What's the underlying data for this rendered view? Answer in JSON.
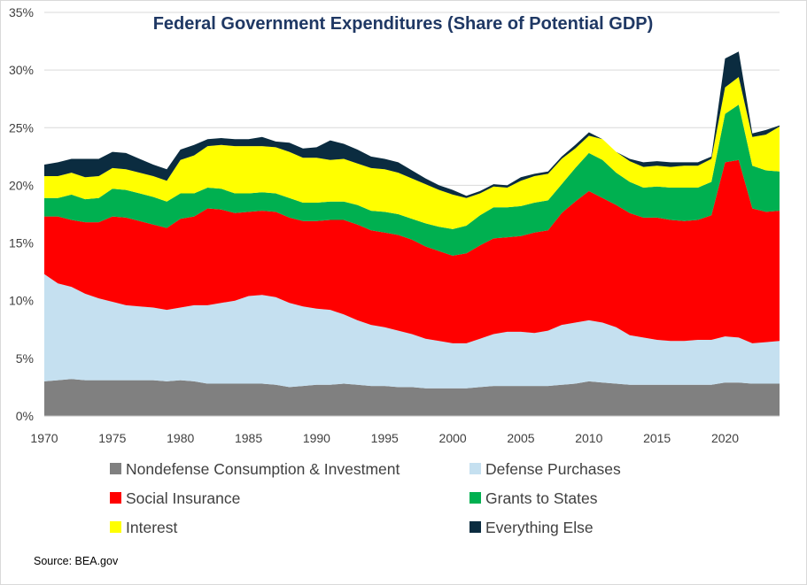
{
  "chart_data": {
    "type": "area",
    "stacked": true,
    "title": "Federal Government Expenditures (Share of Potential GDP)",
    "source": "Source: BEA.gov",
    "xlabel": "",
    "ylabel": "",
    "xlim": [
      1970,
      2024
    ],
    "ylim": [
      0,
      35
    ],
    "y_ticks": [
      "0%",
      "5%",
      "10%",
      "15%",
      "20%",
      "25%",
      "30%",
      "35%"
    ],
    "x_ticks": [
      "1970",
      "1975",
      "1980",
      "1985",
      "1990",
      "1995",
      "2000",
      "2005",
      "2010",
      "2015",
      "2020"
    ],
    "grid": true,
    "legend_position": "bottom",
    "x": [
      1970,
      1971,
      1972,
      1973,
      1974,
      1975,
      1976,
      1977,
      1978,
      1979,
      1980,
      1981,
      1982,
      1983,
      1984,
      1985,
      1986,
      1987,
      1988,
      1989,
      1990,
      1991,
      1992,
      1993,
      1994,
      1995,
      1996,
      1997,
      1998,
      1999,
      2000,
      2001,
      2002,
      2003,
      2004,
      2005,
      2006,
      2007,
      2008,
      2009,
      2010,
      2011,
      2012,
      2013,
      2014,
      2015,
      2016,
      2017,
      2018,
      2019,
      2020,
      2021,
      2022,
      2023,
      2024
    ],
    "series": [
      {
        "name": "Nondefense Consumption & Investment",
        "color": "#808080",
        "values": [
          3.0,
          3.1,
          3.2,
          3.1,
          3.1,
          3.1,
          3.1,
          3.1,
          3.1,
          3.0,
          3.1,
          3.0,
          2.8,
          2.8,
          2.8,
          2.8,
          2.8,
          2.7,
          2.5,
          2.6,
          2.7,
          2.7,
          2.8,
          2.7,
          2.6,
          2.6,
          2.5,
          2.5,
          2.4,
          2.4,
          2.4,
          2.4,
          2.5,
          2.6,
          2.6,
          2.6,
          2.6,
          2.6,
          2.7,
          2.8,
          3.0,
          2.9,
          2.8,
          2.7,
          2.7,
          2.7,
          2.7,
          2.7,
          2.7,
          2.7,
          2.9,
          2.9,
          2.8,
          2.8,
          2.8
        ]
      },
      {
        "name": "Defense Purchases",
        "color": "#c5e0f0",
        "values": [
          9.3,
          8.4,
          8.0,
          7.5,
          7.1,
          6.8,
          6.5,
          6.4,
          6.3,
          6.2,
          6.3,
          6.6,
          6.8,
          7.0,
          7.2,
          7.6,
          7.7,
          7.6,
          7.3,
          6.9,
          6.6,
          6.5,
          6.0,
          5.6,
          5.3,
          5.1,
          4.9,
          4.6,
          4.3,
          4.1,
          3.9,
          3.9,
          4.2,
          4.5,
          4.7,
          4.7,
          4.6,
          4.8,
          5.2,
          5.3,
          5.3,
          5.2,
          4.9,
          4.3,
          4.1,
          3.9,
          3.8,
          3.8,
          3.9,
          3.9,
          4.0,
          3.9,
          3.5,
          3.6,
          3.7
        ]
      },
      {
        "name": "Social Insurance",
        "color": "#ff0000",
        "values": [
          5.0,
          5.8,
          5.8,
          6.2,
          6.6,
          7.4,
          7.6,
          7.4,
          7.2,
          7.1,
          7.7,
          7.7,
          8.4,
          8.1,
          7.6,
          7.3,
          7.3,
          7.4,
          7.4,
          7.4,
          7.6,
          7.8,
          8.2,
          8.3,
          8.2,
          8.2,
          8.3,
          8.2,
          8.0,
          7.8,
          7.6,
          7.8,
          8.1,
          8.3,
          8.2,
          8.3,
          8.7,
          8.7,
          9.7,
          10.5,
          11.2,
          10.8,
          10.6,
          10.6,
          10.4,
          10.6,
          10.5,
          10.4,
          10.4,
          10.8,
          15.1,
          15.4,
          11.7,
          11.3,
          11.3
        ]
      },
      {
        "name": "Grants to States",
        "color": "#00b050",
        "values": [
          1.6,
          1.6,
          2.2,
          2.0,
          2.1,
          2.4,
          2.4,
          2.4,
          2.4,
          2.3,
          2.2,
          2.0,
          1.8,
          1.8,
          1.7,
          1.6,
          1.6,
          1.6,
          1.7,
          1.6,
          1.6,
          1.6,
          1.6,
          1.7,
          1.7,
          1.8,
          1.8,
          1.8,
          2.0,
          2.1,
          2.3,
          2.4,
          2.6,
          2.7,
          2.6,
          2.6,
          2.6,
          2.6,
          2.5,
          2.9,
          3.3,
          3.3,
          2.8,
          2.7,
          2.6,
          2.7,
          2.8,
          2.9,
          2.8,
          2.9,
          4.2,
          4.8,
          3.7,
          3.6,
          3.4
        ]
      },
      {
        "name": "Interest",
        "color": "#ffff00",
        "values": [
          1.9,
          1.9,
          1.9,
          1.9,
          1.9,
          1.8,
          1.8,
          1.8,
          1.8,
          1.8,
          2.9,
          3.3,
          3.6,
          3.8,
          4.1,
          4.1,
          4.0,
          4.0,
          4.0,
          3.9,
          3.9,
          3.6,
          3.7,
          3.6,
          3.7,
          3.7,
          3.6,
          3.5,
          3.4,
          3.2,
          3.0,
          2.4,
          1.9,
          1.8,
          1.7,
          2.2,
          2.3,
          2.3,
          2.2,
          1.7,
          1.5,
          1.8,
          1.8,
          1.8,
          1.8,
          1.8,
          1.8,
          1.9,
          1.9,
          2.0,
          2.3,
          2.4,
          2.5,
          3.1,
          3.9
        ]
      },
      {
        "name": "Everything Else",
        "color": "#0b2c40",
        "values": [
          1.0,
          1.2,
          1.2,
          1.6,
          1.5,
          1.4,
          1.4,
          1.2,
          1.0,
          1.0,
          0.9,
          0.9,
          0.6,
          0.6,
          0.6,
          0.6,
          0.8,
          0.5,
          0.8,
          0.8,
          0.9,
          1.7,
          1.3,
          1.2,
          1.0,
          0.9,
          0.9,
          0.7,
          0.5,
          0.4,
          0.4,
          0.2,
          0.2,
          0.2,
          0.2,
          0.3,
          0.2,
          0.2,
          0.2,
          0.3,
          0.3,
          0.0,
          0.0,
          0.2,
          0.4,
          0.4,
          0.4,
          0.3,
          0.3,
          0.2,
          2.5,
          2.2,
          0.3,
          0.4,
          0.1
        ]
      }
    ]
  }
}
